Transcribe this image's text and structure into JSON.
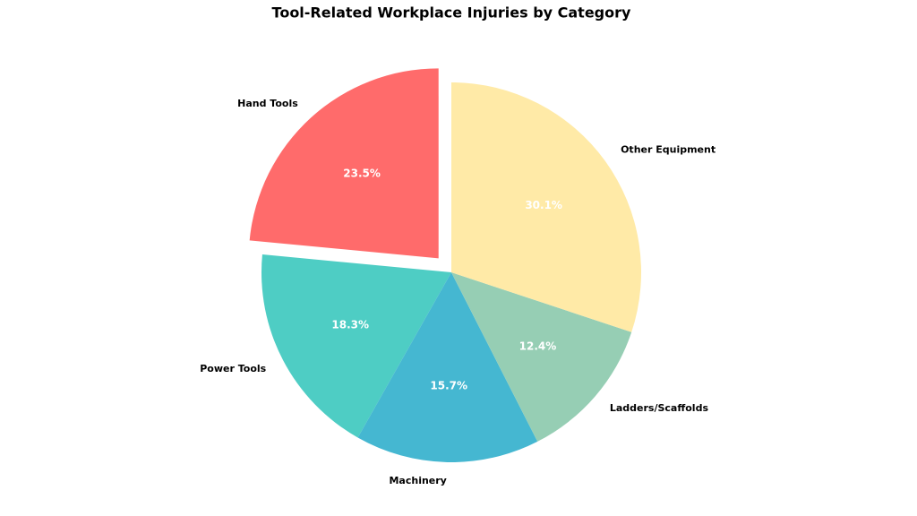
{
  "chart_data": {
    "type": "pie",
    "title": "Tool-Related Workplace Injuries by Category",
    "categories": [
      "Hand Tools",
      "Power Tools",
      "Machinery",
      "Ladders/Scaffolds",
      "Other Equipment"
    ],
    "values": [
      23.5,
      18.3,
      15.7,
      12.4,
      30.1
    ],
    "value_labels": [
      "23.5%",
      "18.3%",
      "15.7%",
      "12.4%",
      "30.1%"
    ],
    "colors": [
      "#ff6b6b",
      "#4ecdc4",
      "#45b7d1",
      "#96ceb4",
      "#ffeaa7"
    ]
  }
}
